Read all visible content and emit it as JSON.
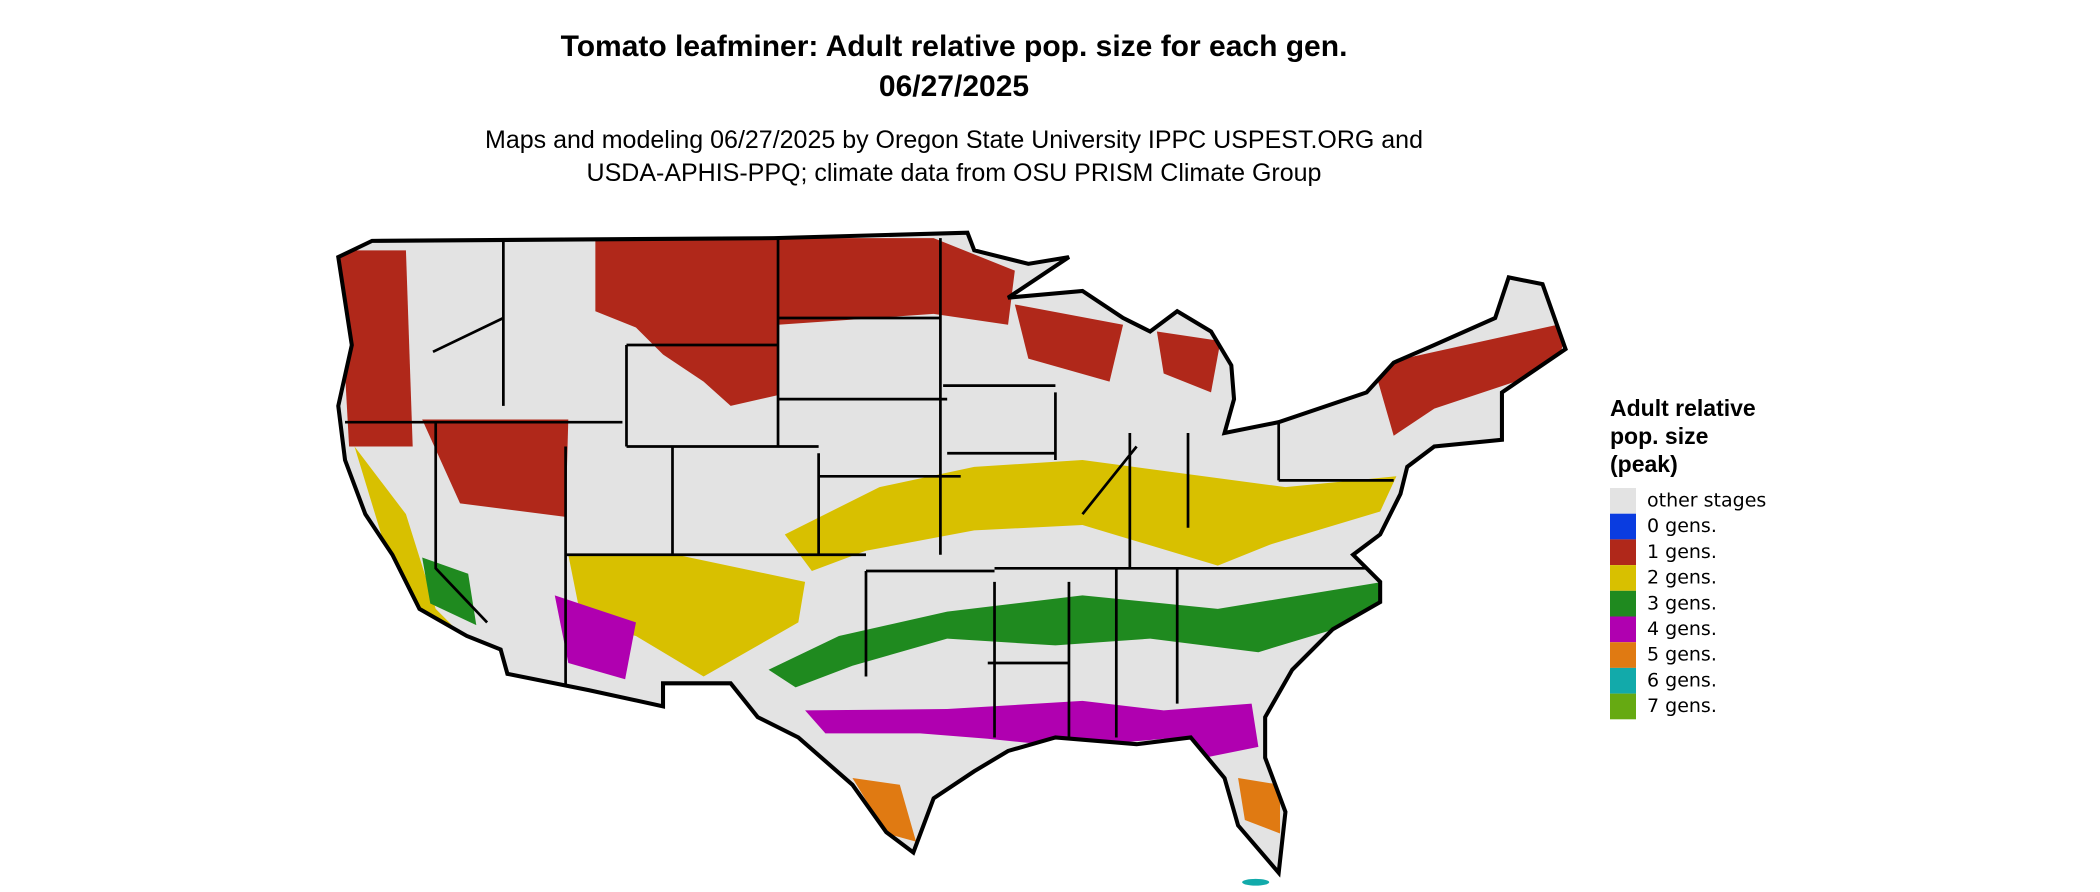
{
  "header": {
    "title": [
      "Tomato leafminer: Adult relative pop. size for each gen.",
      "06/27/2025"
    ],
    "subtitle": [
      "Maps and modeling 06/27/2025 by Oregon State University IPPC USPEST.ORG and",
      "USDA-APHIS-PPQ; climate data from OSU PRISM Climate Group"
    ]
  },
  "legend": {
    "title": [
      "Adult relative",
      "pop. size",
      "(peak)"
    ],
    "items": [
      {
        "label": "other stages",
        "color": "#e3e3e3"
      },
      {
        "label": "0 gens.",
        "color": "#0a3ce0"
      },
      {
        "label": "1 gens.",
        "color": "#b0281a"
      },
      {
        "label": "2 gens.",
        "color": "#d8c000"
      },
      {
        "label": "3 gens.",
        "color": "#1f8a1f"
      },
      {
        "label": "4 gens.",
        "color": "#b000b0"
      },
      {
        "label": "5 gens.",
        "color": "#e07a12"
      },
      {
        "label": "6 gens.",
        "color": "#12aaaa"
      },
      {
        "label": "7 gens.",
        "color": "#66aa12"
      }
    ]
  }
}
